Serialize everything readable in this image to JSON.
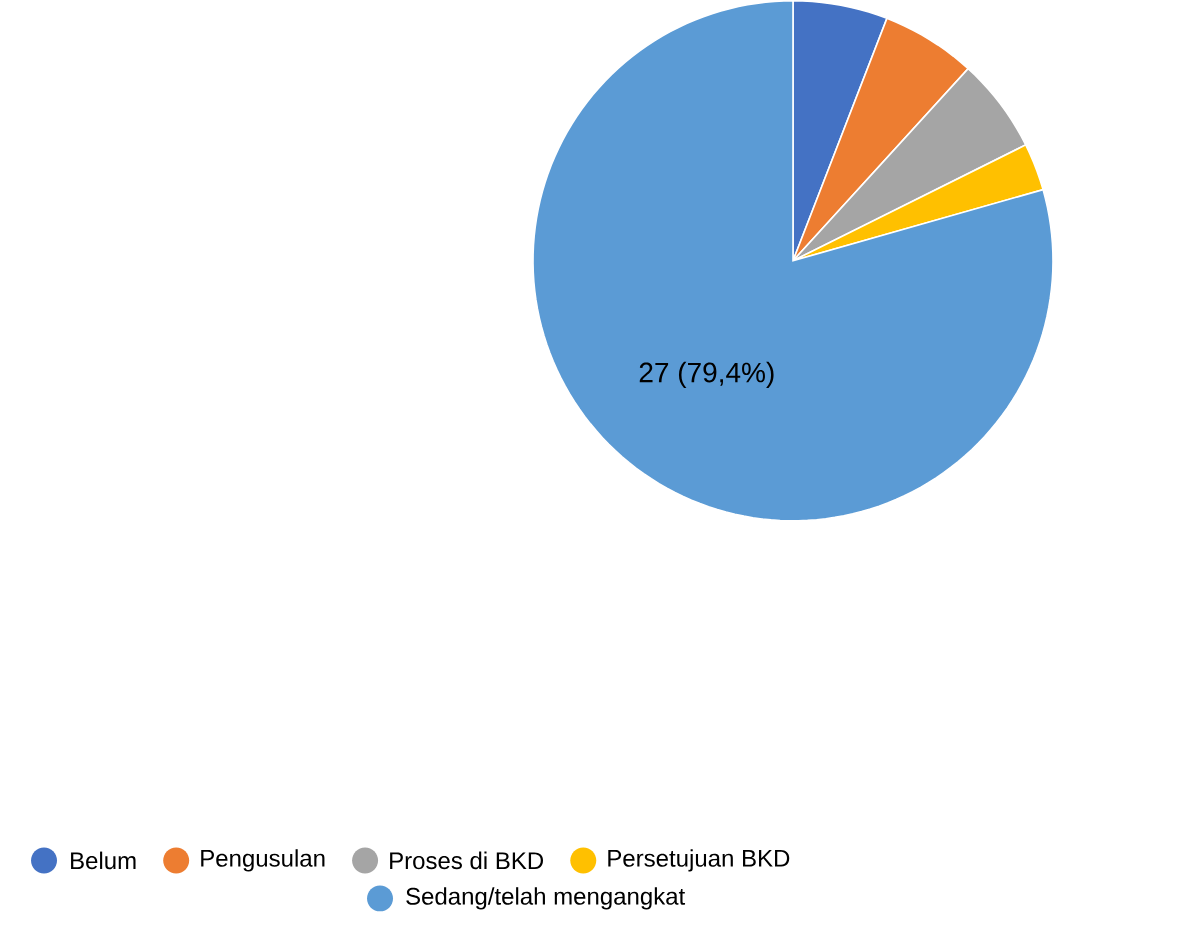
{
  "chart_data": {
    "type": "pie",
    "categories": [
      "Belum",
      "Pengusulan",
      "Proses di BKD",
      "Persetujuan BKD",
      "Sedang/telah mengangkat"
    ],
    "values": [
      2,
      2,
      2,
      1,
      27
    ],
    "colors": [
      "#4472c4",
      "#ed7d31",
      "#a5a5a5",
      "#ffc000",
      "#5b9bd5"
    ],
    "value_labels": [
      null,
      null,
      null,
      null,
      "27 (79,4%)"
    ],
    "legend": "bottom"
  }
}
